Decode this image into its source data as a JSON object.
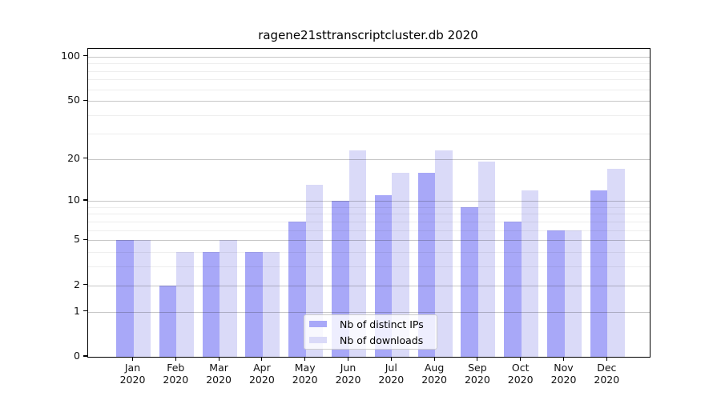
{
  "chart_data": {
    "type": "bar",
    "title": "ragene21sttranscriptcluster.db 2020",
    "categories": [
      "Jan",
      "Feb",
      "Mar",
      "Apr",
      "May",
      "Jun",
      "Jul",
      "Aug",
      "Sep",
      "Oct",
      "Nov",
      "Dec"
    ],
    "x_tick_year": "2020",
    "series": [
      {
        "name": "Nb of distinct IPs",
        "color": "#a8a8f8",
        "values": [
          5,
          2,
          4,
          4,
          7,
          10,
          11,
          16,
          9,
          7,
          6,
          12
        ]
      },
      {
        "name": "Nb of downloads",
        "color": "#dadaf8",
        "values": [
          5,
          4,
          5,
          4,
          13,
          23,
          16,
          23,
          19,
          12,
          6,
          17
        ]
      }
    ],
    "y_axis": {
      "scale": "log1p",
      "ticks": [
        0,
        1,
        2,
        5,
        10,
        20,
        50,
        100
      ],
      "minor_ticks": [
        3,
        4,
        6,
        7,
        8,
        9,
        30,
        40,
        60,
        70,
        80,
        90
      ],
      "max": 113
    },
    "legend": {
      "position": "lower center",
      "entries": [
        "Nb of distinct IPs",
        "Nb of downloads"
      ]
    },
    "grid": true
  },
  "colors": {
    "distinct_ips": "#a8a8f8",
    "downloads": "#dadaf8",
    "grid_major": "rgba(40,40,40,0.26)",
    "grid_minor": "rgba(40,40,40,0.08)",
    "spine": "#000000",
    "background": "#ffffff"
  }
}
